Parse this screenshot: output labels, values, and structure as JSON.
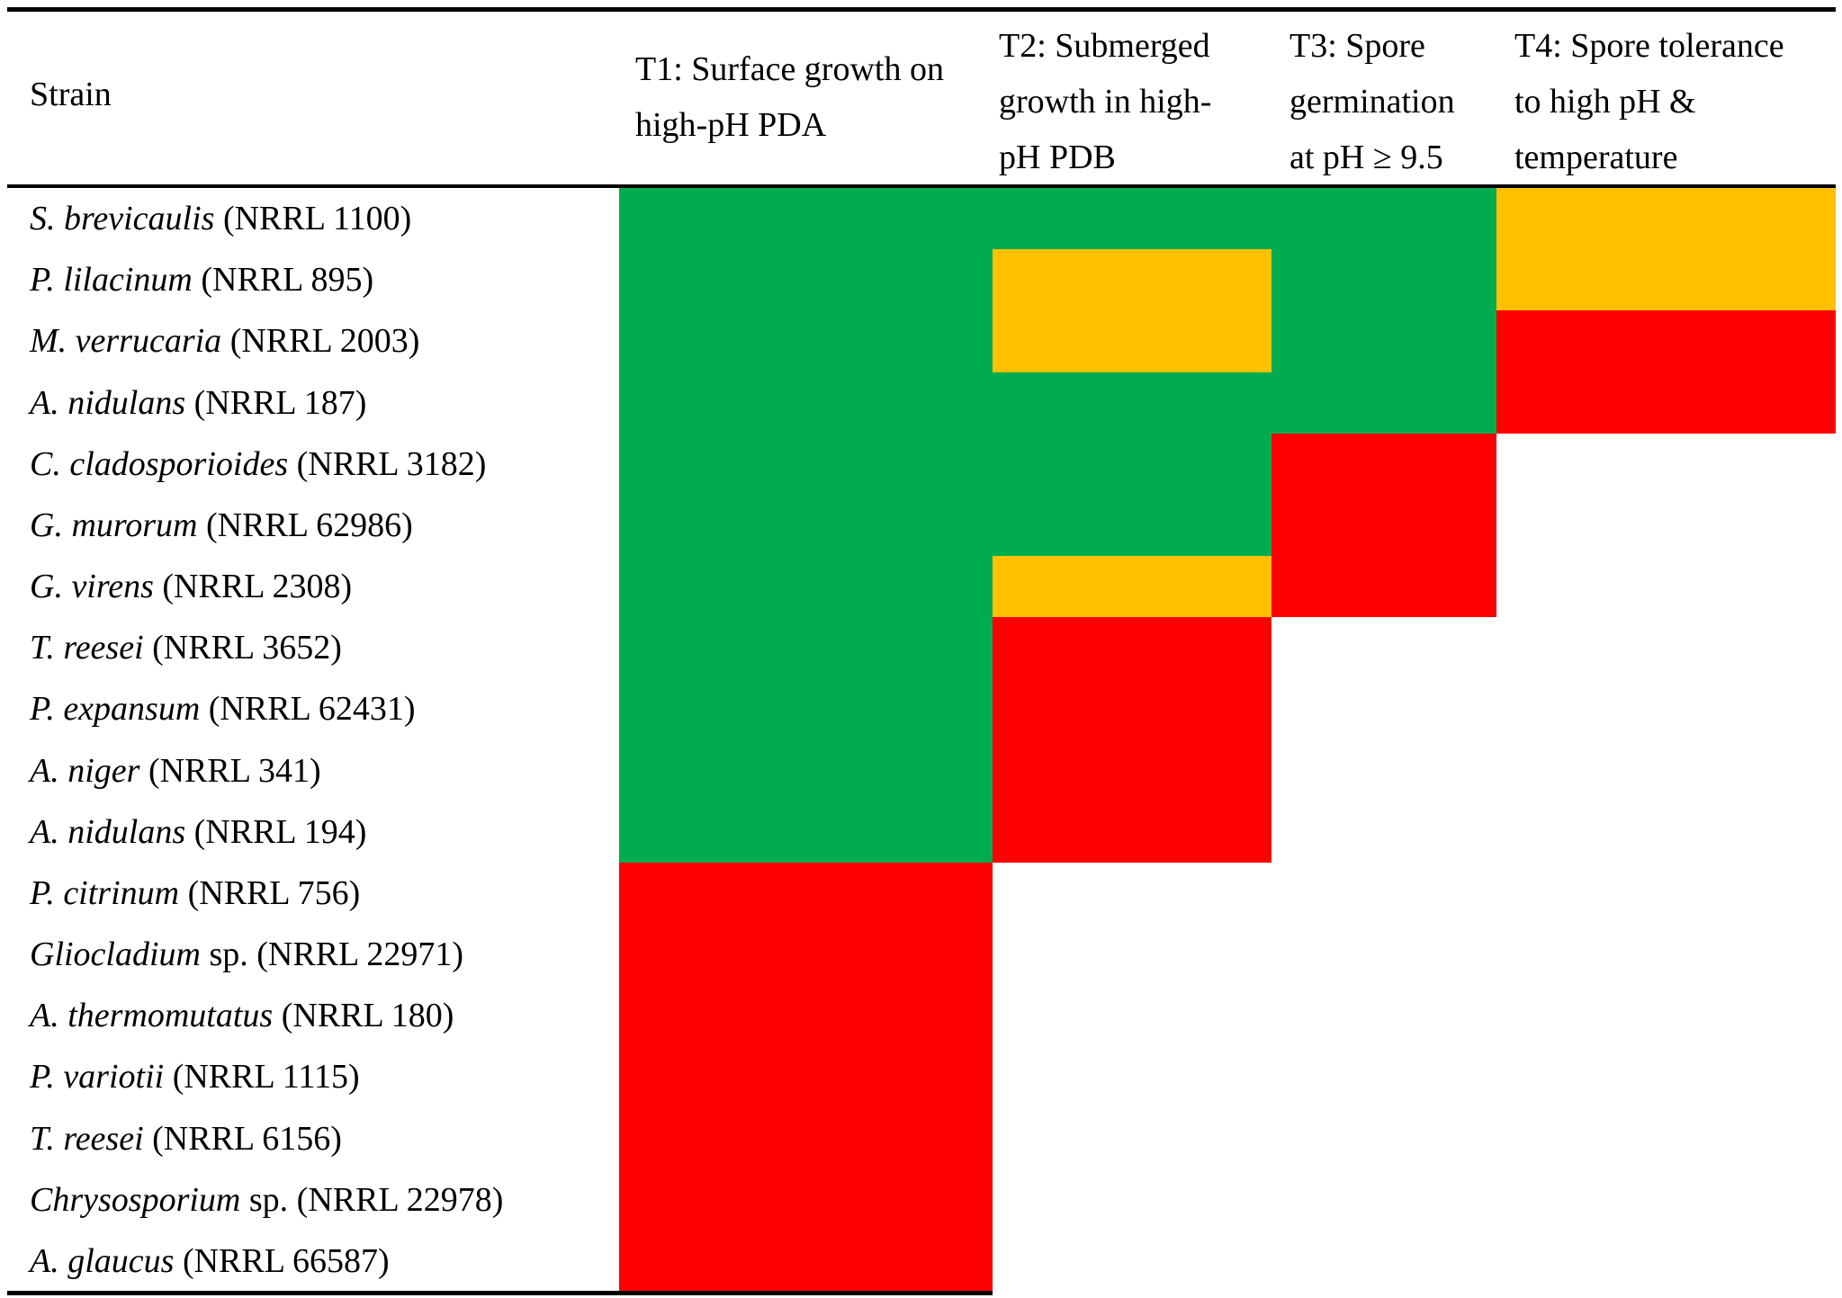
{
  "table": {
    "columns": [
      {
        "id": "strain",
        "label_lines": [
          "Strain"
        ]
      },
      {
        "id": "t1",
        "label_lines": [
          "T1: Surface growth on",
          "high-pH PDA"
        ]
      },
      {
        "id": "t2",
        "label_lines": [
          "T2: Submerged",
          "growth in high-",
          "pH PDB"
        ]
      },
      {
        "id": "t3",
        "label_lines": [
          "T3: Spore",
          "germination",
          "at pH ≥ 9.5"
        ]
      },
      {
        "id": "t4",
        "label_lines": [
          "T4: Spore tolerance",
          "to high pH &",
          "temperature"
        ]
      }
    ],
    "color_map": {
      "green": "#00AC4F",
      "yellow": "#FFC000",
      "red": "#FF0000"
    },
    "rows": [
      {
        "species": "S. brevicaulis",
        "suffix": " (NRRL 1100)",
        "results": [
          "green",
          "green",
          "green",
          "yellow"
        ]
      },
      {
        "species": "P. lilacinum",
        "suffix": " (NRRL 895)",
        "results": [
          "green",
          "yellow",
          "green",
          "yellow"
        ]
      },
      {
        "species": "M. verrucaria",
        "suffix": " (NRRL 2003)",
        "results": [
          "green",
          "yellow",
          "green",
          "red"
        ]
      },
      {
        "species": "A. nidulans",
        "suffix": " (NRRL 187)",
        "results": [
          "green",
          "green",
          "green",
          "red"
        ]
      },
      {
        "species": "C. cladosporioides",
        "suffix": " (NRRL 3182)",
        "results": [
          "green",
          "green",
          "red",
          null
        ]
      },
      {
        "species": "G. murorum",
        "suffix": " (NRRL 62986)",
        "results": [
          "green",
          "green",
          "red",
          null
        ]
      },
      {
        "species": "G. virens",
        "suffix": " (NRRL 2308)",
        "results": [
          "green",
          "yellow",
          "red",
          null
        ]
      },
      {
        "species": "T. reesei",
        "suffix": " (NRRL 3652)",
        "results": [
          "green",
          "red",
          null,
          null
        ]
      },
      {
        "species": "P. expansum",
        "suffix": " (NRRL 62431)",
        "results": [
          "green",
          "red",
          null,
          null
        ]
      },
      {
        "species": "A. niger",
        "suffix": " (NRRL 341)",
        "results": [
          "green",
          "red",
          null,
          null
        ]
      },
      {
        "species": "A. nidulans",
        "suffix": " (NRRL 194)",
        "results": [
          "green",
          "red",
          null,
          null
        ]
      },
      {
        "species": "P. citrinum",
        "suffix": " (NRRL 756)",
        "results": [
          "red",
          null,
          null,
          null
        ]
      },
      {
        "species": "Gliocladium",
        "suffix": " sp. (NRRL 22971)",
        "results": [
          "red",
          null,
          null,
          null
        ]
      },
      {
        "species": "A. thermomutatus",
        "suffix": " (NRRL 180)",
        "results": [
          "red",
          null,
          null,
          null
        ]
      },
      {
        "species": "P. variotii",
        "suffix": " (NRRL 1115)",
        "results": [
          "red",
          null,
          null,
          null
        ]
      },
      {
        "species": "T. reesei",
        "suffix": " (NRRL 6156)",
        "results": [
          "red",
          null,
          null,
          null
        ]
      },
      {
        "species": "Chrysosporium",
        "suffix": " sp. (NRRL 22978)",
        "results": [
          "red",
          null,
          null,
          null
        ]
      },
      {
        "species": "A. glaucus",
        "suffix": " (NRRL 66587)",
        "results": [
          "red",
          null,
          null,
          null
        ]
      }
    ]
  },
  "chart_data": {
    "type": "heatmap",
    "title": "",
    "columns": [
      "T1: Surface growth on high-pH PDA",
      "T2: Submerged growth in high-pH PDB",
      "T3: Spore germination at pH ≥ 9.5",
      "T4: Spore tolerance to high pH & temperature"
    ],
    "rows": [
      "S. brevicaulis (NRRL 1100)",
      "P. lilacinum (NRRL 895)",
      "M. verrucaria (NRRL 2003)",
      "A. nidulans (NRRL 187)",
      "C. cladosporioides (NRRL 3182)",
      "G. murorum (NRRL 62986)",
      "G. virens (NRRL 2308)",
      "T. reesei (NRRL 3652)",
      "P. expansum (NRRL 62431)",
      "A. niger (NRRL 341)",
      "A. nidulans (NRRL 194)",
      "P. citrinum (NRRL 756)",
      "Gliocladium sp. (NRRL 22971)",
      "A. thermomutatus (NRRL 180)",
      "P. variotii (NRRL 1115)",
      "T. reesei (NRRL 6156)",
      "Chrysosporium sp. (NRRL 22978)",
      "A. glaucus (NRRL 66587)"
    ],
    "values": [
      [
        "green",
        "green",
        "green",
        "yellow"
      ],
      [
        "green",
        "yellow",
        "green",
        "yellow"
      ],
      [
        "green",
        "yellow",
        "green",
        "red"
      ],
      [
        "green",
        "green",
        "green",
        "red"
      ],
      [
        "green",
        "green",
        "red",
        null
      ],
      [
        "green",
        "green",
        "red",
        null
      ],
      [
        "green",
        "yellow",
        "red",
        null
      ],
      [
        "green",
        "red",
        null,
        null
      ],
      [
        "green",
        "red",
        null,
        null
      ],
      [
        "green",
        "red",
        null,
        null
      ],
      [
        "green",
        "red",
        null,
        null
      ],
      [
        "red",
        null,
        null,
        null
      ],
      [
        "red",
        null,
        null,
        null
      ],
      [
        "red",
        null,
        null,
        null
      ],
      [
        "red",
        null,
        null,
        null
      ],
      [
        "red",
        null,
        null,
        null
      ],
      [
        "red",
        null,
        null,
        null
      ],
      [
        "red",
        null,
        null,
        null
      ]
    ],
    "color_key": {
      "green": "#00AC4F",
      "yellow": "#FFC000",
      "red": "#FF0000"
    },
    "legend_position": "none",
    "grid": false
  }
}
